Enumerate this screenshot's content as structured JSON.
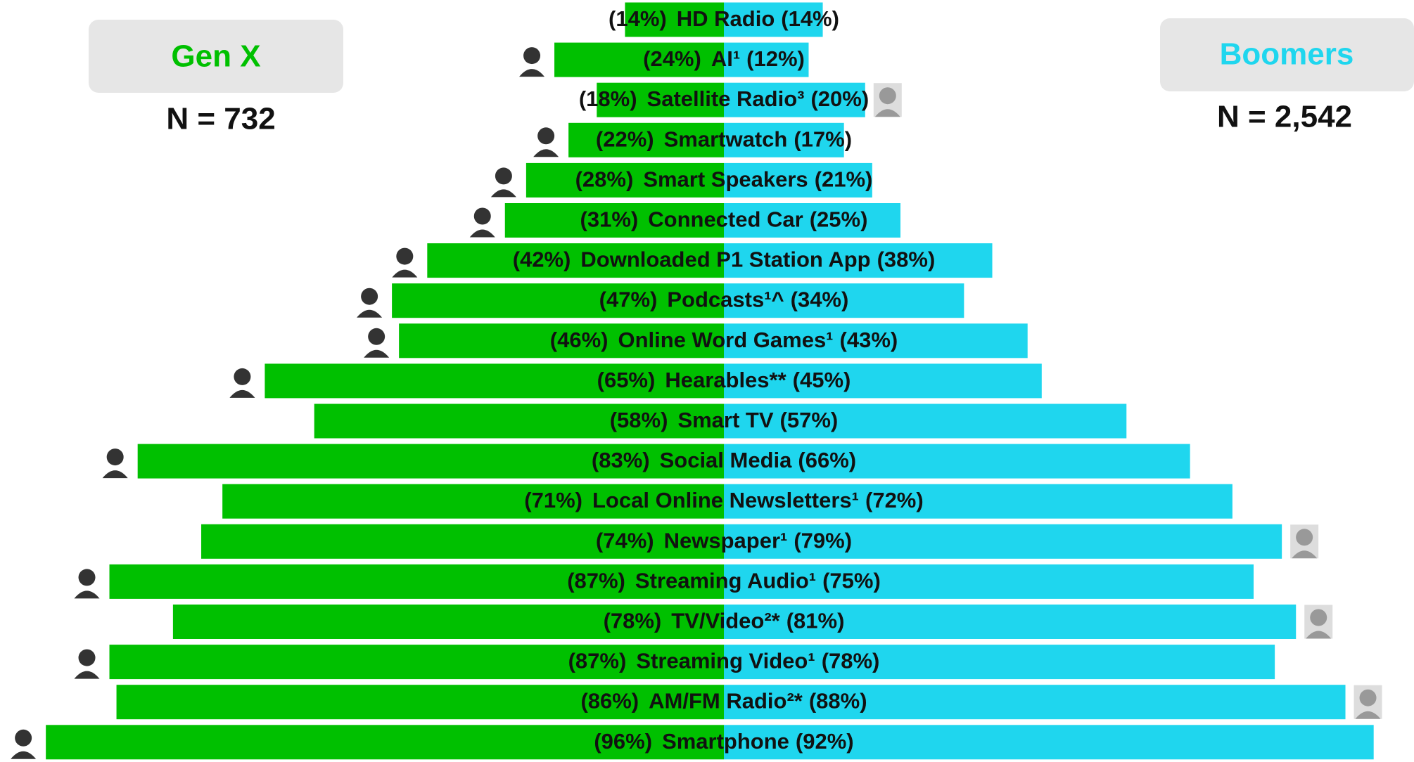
{
  "chart_data": {
    "type": "butterfly",
    "categories": [
      "HD Radio",
      "AI¹",
      "Satellite Radio³",
      "Smartwatch",
      "Smart Speakers",
      "Connected Car",
      "Downloaded P1 Station App",
      "Podcasts¹^",
      "Online Word Games¹",
      "Hearables**",
      "Smart TV",
      "Social Media",
      "Local Online Newsletters¹",
      "Newspaper¹",
      "Streaming Audio¹",
      "TV/Video²*",
      "Streaming Video¹",
      "AM/FM Radio²*",
      "Smartphone"
    ],
    "series": [
      {
        "name": "Gen X",
        "color": "#00c000",
        "side": "left",
        "values": [
          14,
          24,
          18,
          22,
          28,
          31,
          42,
          47,
          46,
          65,
          58,
          83,
          71,
          74,
          87,
          78,
          87,
          86,
          96
        ],
        "value_labels": [
          "(14%)",
          "(24%)",
          "(18%)",
          "(22%)",
          "(28%)",
          "(31%)",
          "(42%)",
          "(47%)",
          "(46%)",
          "(65%)",
          "(58%)",
          "(83%)",
          "(71%)",
          "(74%)",
          "(87%)",
          "(78%)",
          "(87%)",
          "(86%)",
          "(96%)"
        ]
      },
      {
        "name": "Boomers",
        "color": "#1fd6ee",
        "side": "right",
        "values": [
          14,
          12,
          20,
          17,
          21,
          25,
          38,
          34,
          43,
          45,
          57,
          66,
          72,
          79,
          75,
          81,
          78,
          88,
          92
        ],
        "value_labels": [
          "(14%)",
          "(12%)",
          "(20%)",
          "(17%)",
          "(21%)",
          "(25%)",
          "(38%)",
          "(34%)",
          "(43%)",
          "(45%)",
          "(57%)",
          "(66%)",
          "(72%)",
          "(79%)",
          "(75%)",
          "(81%)",
          "(78%)",
          "(88%)",
          "(92%)"
        ]
      }
    ],
    "sample_sizes": [
      "N = 732",
      "N = 2,542"
    ],
    "markers": [
      null,
      "left",
      "right",
      "left",
      "left",
      "left",
      "left",
      "left",
      "left",
      "left",
      null,
      "left",
      null,
      "right",
      "left",
      "right",
      "left",
      "right",
      "left"
    ],
    "xlim": [
      0,
      100
    ]
  }
}
